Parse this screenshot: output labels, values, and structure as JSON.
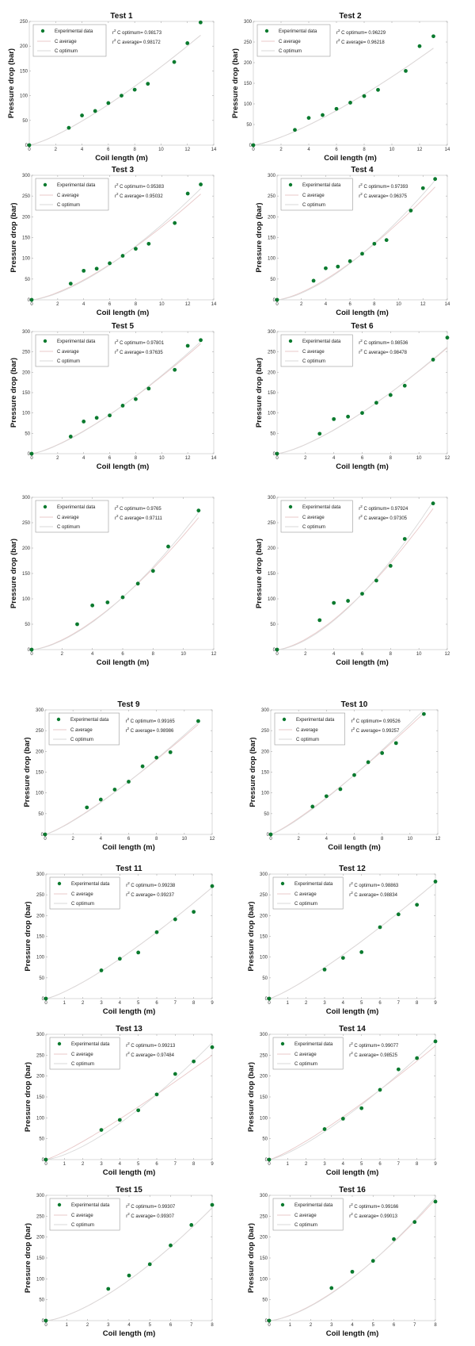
{
  "chart_data": [
    {
      "type": "scatter",
      "title": "Test 1",
      "xlabel": "Coil length (m)",
      "ylabel": "Pressure drop (bar)",
      "xlim": [
        0,
        14
      ],
      "ylim": [
        0,
        250
      ],
      "xticks": [
        0,
        2,
        4,
        6,
        8,
        10,
        12,
        14
      ],
      "yticks": [
        0,
        50,
        100,
        150,
        200,
        250
      ],
      "x": [
        0,
        3,
        4,
        5,
        6,
        7,
        8,
        9,
        11,
        12,
        13
      ],
      "y": [
        0,
        35,
        60,
        69,
        85,
        100,
        112,
        124,
        168,
        206,
        248
      ],
      "legend": [
        "Experimental data",
        "C average",
        "C optimum"
      ],
      "r2_optimum": "0.98173",
      "r2_average": "0.98172",
      "fit_end": {
        "average": 222,
        "optimum": 222
      }
    },
    {
      "type": "scatter",
      "title": "Test 2",
      "xlabel": "Coil length (m)",
      "ylabel": "Pressure drop (bar)",
      "xlim": [
        0,
        14
      ],
      "ylim": [
        0,
        300
      ],
      "xticks": [
        0,
        2,
        4,
        6,
        8,
        10,
        12,
        14
      ],
      "yticks": [
        0,
        50,
        100,
        150,
        200,
        250,
        300
      ],
      "x": [
        0,
        3,
        4,
        5,
        6,
        7,
        8,
        9,
        11,
        12,
        13
      ],
      "y": [
        0,
        37,
        66,
        73,
        88,
        103,
        119,
        134,
        180,
        240,
        264
      ],
      "legend": [
        "Experimental data",
        "C average",
        "C optimum"
      ],
      "r2_optimum": "0.96229",
      "r2_average": "0.96218",
      "fit_end": {
        "average": 235,
        "optimum": 235
      }
    },
    {
      "type": "scatter",
      "title": "Test 3",
      "xlabel": "Coil length (m)",
      "ylabel": "Pressure drop (bar)",
      "xlim": [
        0,
        14
      ],
      "ylim": [
        0,
        300
      ],
      "xticks": [
        0,
        2,
        4,
        6,
        8,
        10,
        12,
        14
      ],
      "yticks": [
        0,
        50,
        100,
        150,
        200,
        250,
        300
      ],
      "x": [
        0,
        3,
        4,
        5,
        6,
        7,
        8,
        9,
        11,
        12,
        13
      ],
      "y": [
        0,
        39,
        70,
        75,
        88,
        106,
        123,
        135,
        185,
        256,
        278
      ],
      "legend": [
        "Experimental data",
        "C average",
        "C optimum"
      ],
      "r2_optimum": "0.95383",
      "r2_average": "0.95032",
      "fit_end": {
        "average": 255,
        "optimum": 268
      }
    },
    {
      "type": "scatter",
      "title": "Test 4",
      "xlabel": "Coil length (m)",
      "ylabel": "Pressure drop (bar)",
      "xlim": [
        0,
        14
      ],
      "ylim": [
        0,
        300
      ],
      "xticks": [
        0,
        2,
        4,
        6,
        8,
        10,
        12,
        14
      ],
      "yticks": [
        0,
        50,
        100,
        150,
        200,
        250,
        300
      ],
      "x": [
        0,
        3,
        4,
        5,
        6,
        7,
        8,
        9,
        11,
        12,
        13
      ],
      "y": [
        0,
        46,
        76,
        80,
        93,
        111,
        135,
        144,
        215,
        269,
        291
      ],
      "legend": [
        "Experimental data",
        "C average",
        "C optimum"
      ],
      "r2_optimum": "0.97393",
      "r2_average": "0.96375",
      "fit_end": {
        "average": 272,
        "optimum": 288
      }
    },
    {
      "type": "scatter",
      "title": "Test 5",
      "xlabel": "Coil length (m)",
      "ylabel": "Pressure drop (bar)",
      "xlim": [
        0,
        14
      ],
      "ylim": [
        0,
        300
      ],
      "xticks": [
        0,
        2,
        4,
        6,
        8,
        10,
        12,
        14
      ],
      "yticks": [
        0,
        50,
        100,
        150,
        200,
        250,
        300
      ],
      "x": [
        0,
        3,
        4,
        5,
        6,
        7,
        8,
        9,
        11,
        12,
        13
      ],
      "y": [
        0,
        42,
        79,
        88,
        94,
        118,
        134,
        160,
        206,
        265,
        279
      ],
      "legend": [
        "Experimental data",
        "C average",
        "C optimum"
      ],
      "r2_optimum": "0.97801",
      "r2_average": "0.97635",
      "fit_end": {
        "average": 270,
        "optimum": 275
      }
    },
    {
      "type": "scatter",
      "title": "Test 6",
      "xlabel": "Coil length (m)",
      "ylabel": "Pressure drop (bar)",
      "xlim": [
        0,
        12
      ],
      "ylim": [
        0,
        300
      ],
      "xticks": [
        0,
        2,
        4,
        6,
        8,
        10,
        12
      ],
      "yticks": [
        0,
        50,
        100,
        150,
        200,
        250,
        300
      ],
      "x": [
        0,
        3,
        4,
        5,
        6,
        7,
        8,
        9,
        11,
        12
      ],
      "y": [
        0,
        49,
        85,
        91,
        100,
        125,
        144,
        167,
        231,
        285
      ],
      "legend": [
        "Experimental data",
        "C average",
        "C optimum"
      ],
      "r2_optimum": "0.98536",
      "r2_average": "0.98478",
      "fit_end": {
        "average": 260,
        "optimum": 262
      }
    },
    {
      "type": "scatter",
      "title": "",
      "xlabel": "Coil length (m)",
      "ylabel": "Pressure drop (bar)",
      "xlim": [
        0,
        12
      ],
      "ylim": [
        0,
        300
      ],
      "xticks": [
        0,
        2,
        4,
        6,
        8,
        10,
        12
      ],
      "yticks": [
        0,
        50,
        100,
        150,
        200,
        250,
        300
      ],
      "x": [
        0,
        3,
        4,
        5,
        6,
        7,
        8,
        9,
        11
      ],
      "y": [
        0,
        50,
        87,
        93,
        103,
        130,
        155,
        203,
        274
      ],
      "legend": [
        "Experimental data",
        "C average",
        "C optimum"
      ],
      "r2_optimum": "0.9765",
      "r2_average": "0.97111",
      "fit_end": {
        "average": 260,
        "optimum": 270
      }
    },
    {
      "type": "scatter",
      "title": "",
      "xlabel": "Coil length (m)",
      "ylabel": "Pressure drop (bar)",
      "xlim": [
        0,
        12
      ],
      "ylim": [
        0,
        300
      ],
      "xticks": [
        0,
        2,
        4,
        6,
        8,
        10,
        12
      ],
      "yticks": [
        0,
        50,
        100,
        150,
        200,
        250,
        300
      ],
      "x": [
        0,
        3,
        4,
        5,
        6,
        7,
        8,
        9,
        11
      ],
      "y": [
        0,
        58,
        92,
        96,
        110,
        136,
        165,
        218,
        288
      ],
      "legend": [
        "Experimental data",
        "C average",
        "C optimum"
      ],
      "r2_optimum": "0.97924",
      "r2_average": "0.97305",
      "fit_end": {
        "average": 278,
        "optimum": 292
      }
    },
    {
      "type": "scatter",
      "title": "Test 9",
      "xlabel": "Coil length (m)",
      "ylabel": "Pressure drop (bar)",
      "xlim": [
        0,
        12
      ],
      "ylim": [
        0,
        300
      ],
      "xticks": [
        0,
        2,
        4,
        6,
        8,
        10,
        12
      ],
      "yticks": [
        0,
        50,
        100,
        150,
        200,
        250,
        300
      ],
      "x": [
        0,
        3,
        4,
        5,
        6,
        7,
        8,
        9,
        11
      ],
      "y": [
        0,
        65,
        84,
        108,
        127,
        164,
        185,
        198,
        273
      ],
      "legend": [
        "Experimental data",
        "C average",
        "C optimum"
      ],
      "r2_optimum": "0.99165",
      "r2_average": "0.98986",
      "fit_end": {
        "average": 265,
        "optimum": 270
      }
    },
    {
      "type": "scatter",
      "title": "Test 10",
      "xlabel": "Coil length (m)",
      "ylabel": "Pressure drop (bar)",
      "xlim": [
        0,
        12
      ],
      "ylim": [
        0,
        300
      ],
      "xticks": [
        0,
        2,
        4,
        6,
        8,
        10,
        12
      ],
      "yticks": [
        0,
        50,
        100,
        150,
        200,
        250,
        300
      ],
      "x": [
        0,
        3,
        4,
        5,
        6,
        7,
        8,
        9,
        11
      ],
      "y": [
        0,
        67,
        92,
        109,
        143,
        174,
        196,
        220,
        290
      ],
      "legend": [
        "Experimental data",
        "C average",
        "C optimum"
      ],
      "r2_optimum": "0.99526",
      "r2_average": "0.99257",
      "fit_end": {
        "average": 292,
        "optimum": 300
      }
    },
    {
      "type": "scatter",
      "title": "Test 11",
      "xlabel": "Coil length (m)",
      "ylabel": "Pressure drop (bar)",
      "xlim": [
        0,
        9
      ],
      "ylim": [
        0,
        300
      ],
      "xticks": [
        0,
        1,
        2,
        3,
        4,
        5,
        6,
        7,
        8,
        9
      ],
      "yticks": [
        0,
        50,
        100,
        150,
        200,
        250,
        300
      ],
      "x": [
        0,
        3,
        4,
        5,
        6,
        7,
        8,
        9
      ],
      "y": [
        0,
        68,
        96,
        111,
        160,
        191,
        209,
        271
      ],
      "legend": [
        "Experimental data",
        "C average",
        "C optimum"
      ],
      "r2_optimum": "0.99238",
      "r2_average": "0.99237",
      "fit_end": {
        "average": 268,
        "optimum": 268
      }
    },
    {
      "type": "scatter",
      "title": "Test 12",
      "xlabel": "Coil length (m)",
      "ylabel": "Pressure drop (bar)",
      "xlim": [
        0,
        9
      ],
      "ylim": [
        0,
        300
      ],
      "xticks": [
        0,
        1,
        2,
        3,
        4,
        5,
        6,
        7,
        8,
        9
      ],
      "yticks": [
        0,
        50,
        100,
        150,
        200,
        250,
        300
      ],
      "x": [
        0,
        3,
        4,
        5,
        6,
        7,
        8,
        9
      ],
      "y": [
        0,
        70,
        98,
        112,
        172,
        203,
        226,
        282
      ],
      "legend": [
        "Experimental data",
        "C average",
        "C optimum"
      ],
      "r2_optimum": "0.98863",
      "r2_average": "0.98834",
      "fit_end": {
        "average": 280,
        "optimum": 280
      }
    },
    {
      "type": "scatter",
      "title": "Test 13",
      "xlabel": "Coil length (m)",
      "ylabel": "Pressure drop (bar)",
      "xlim": [
        0,
        9
      ],
      "ylim": [
        0,
        300
      ],
      "xticks": [
        0,
        1,
        2,
        3,
        4,
        5,
        6,
        7,
        8,
        9
      ],
      "yticks": [
        0,
        50,
        100,
        150,
        200,
        250,
        300
      ],
      "x": [
        0,
        3,
        4,
        5,
        6,
        7,
        8,
        9
      ],
      "y": [
        0,
        71,
        95,
        118,
        156,
        205,
        235,
        269
      ],
      "legend": [
        "Experimental data",
        "C average",
        "C optimum"
      ],
      "r2_optimum": "0.99213",
      "r2_average": "0.97484",
      "fit_end": {
        "average": 250,
        "optimum": 280
      }
    },
    {
      "type": "scatter",
      "title": "Test 14",
      "xlabel": "Coil length (m)",
      "ylabel": "Pressure drop (bar)",
      "xlim": [
        0,
        9
      ],
      "ylim": [
        0,
        300
      ],
      "xticks": [
        0,
        1,
        2,
        3,
        4,
        5,
        6,
        7,
        8,
        9
      ],
      "yticks": [
        0,
        50,
        100,
        150,
        200,
        250,
        300
      ],
      "x": [
        0,
        3,
        4,
        5,
        6,
        7,
        8,
        9
      ],
      "y": [
        0,
        73,
        98,
        123,
        167,
        216,
        243,
        283
      ],
      "legend": [
        "Experimental data",
        "C average",
        "C optimum"
      ],
      "r2_optimum": "0.99077",
      "r2_average": "0.98525",
      "fit_end": {
        "average": 272,
        "optimum": 285
      }
    },
    {
      "type": "scatter",
      "title": "Test 15",
      "xlabel": "Coil length (m)",
      "ylabel": "Pressure drop (bar)",
      "xlim": [
        0,
        8
      ],
      "ylim": [
        0,
        300
      ],
      "xticks": [
        0,
        1,
        2,
        3,
        4,
        5,
        6,
        7,
        8
      ],
      "yticks": [
        0,
        50,
        100,
        150,
        200,
        250,
        300
      ],
      "x": [
        0,
        3,
        4,
        5,
        6,
        7,
        8
      ],
      "y": [
        0,
        76,
        108,
        135,
        180,
        229,
        277
      ],
      "legend": [
        "Experimental data",
        "C average",
        "C optimum"
      ],
      "r2_optimum": "0.99307",
      "r2_average": "0.99307",
      "fit_end": {
        "average": 270,
        "optimum": 270
      }
    },
    {
      "type": "scatter",
      "title": "Test 16",
      "xlabel": "Coil length (m)",
      "ylabel": "Pressure drop (bar)",
      "xlim": [
        0,
        8
      ],
      "ylim": [
        0,
        300
      ],
      "xticks": [
        0,
        1,
        2,
        3,
        4,
        5,
        6,
        7,
        8
      ],
      "yticks": [
        0,
        50,
        100,
        150,
        200,
        250,
        300
      ],
      "x": [
        0,
        3,
        4,
        5,
        6,
        7,
        8
      ],
      "y": [
        0,
        78,
        117,
        143,
        195,
        236,
        285
      ],
      "legend": [
        "Experimental data",
        "C average",
        "C optimum"
      ],
      "r2_optimum": "0.99166",
      "r2_average": "0.99013",
      "fit_end": {
        "average": 290,
        "optimum": 295
      }
    }
  ],
  "labels": {
    "r2_prefix_opt": "C optimum= ",
    "r2_prefix_avg": "C average= ",
    "r_symbol": "r",
    "sup": "2"
  },
  "colors": {
    "points": "#0a7a2e",
    "c_average": "#e8c8c8",
    "c_optimum": "#d9d9d9"
  }
}
